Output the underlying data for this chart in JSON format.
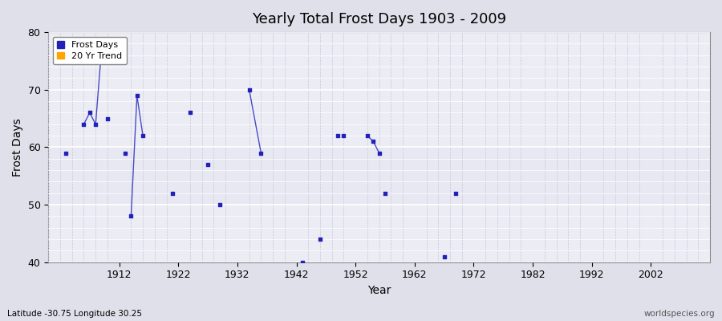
{
  "title": "Yearly Total Frost Days 1903 - 2009",
  "xlabel": "Year",
  "ylabel": "Frost Days",
  "ylim": [
    40,
    80
  ],
  "xlim": [
    1900,
    2012
  ],
  "fig_bg_color": "#e0e0ea",
  "plot_bg_color": "#e8e8f2",
  "frost_days_color": "#2222bb",
  "trend_color": "#ffa500",
  "grid_color_major": "#ffffff",
  "grid_color_minor": "#d8d8e8",
  "subtitle": "Latitude -30.75 Longitude 30.25",
  "watermark": "worldspecies.org",
  "yticks": [
    40,
    50,
    60,
    70,
    80
  ],
  "xticks": [
    1912,
    1922,
    1932,
    1942,
    1952,
    1962,
    1972,
    1982,
    1992,
    2002
  ],
  "frost_data": [
    [
      1903,
      59
    ],
    [
      1906,
      64
    ],
    [
      1907,
      66
    ],
    [
      1908,
      64
    ],
    [
      1909,
      77
    ],
    [
      1910,
      65
    ],
    [
      1913,
      59
    ],
    [
      1914,
      48
    ],
    [
      1915,
      69
    ],
    [
      1916,
      62
    ],
    [
      1921,
      52
    ],
    [
      1924,
      66
    ],
    [
      1927,
      57
    ],
    [
      1929,
      50
    ],
    [
      1934,
      70
    ],
    [
      1936,
      59
    ],
    [
      1943,
      40
    ],
    [
      1946,
      44
    ],
    [
      1949,
      62
    ],
    [
      1950,
      62
    ],
    [
      1954,
      62
    ],
    [
      1955,
      61
    ],
    [
      1956,
      59
    ],
    [
      1957,
      52
    ],
    [
      1967,
      41
    ],
    [
      1969,
      52
    ]
  ],
  "connected_segments": [
    [
      [
        1906,
        64
      ],
      [
        1907,
        66
      ],
      [
        1908,
        64
      ],
      [
        1909,
        77
      ]
    ],
    [
      [
        1914,
        48
      ],
      [
        1915,
        69
      ],
      [
        1916,
        62
      ]
    ],
    [
      [
        1934,
        70
      ],
      [
        1936,
        59
      ]
    ],
    [
      [
        1954,
        62
      ],
      [
        1955,
        61
      ],
      [
        1956,
        59
      ]
    ]
  ]
}
